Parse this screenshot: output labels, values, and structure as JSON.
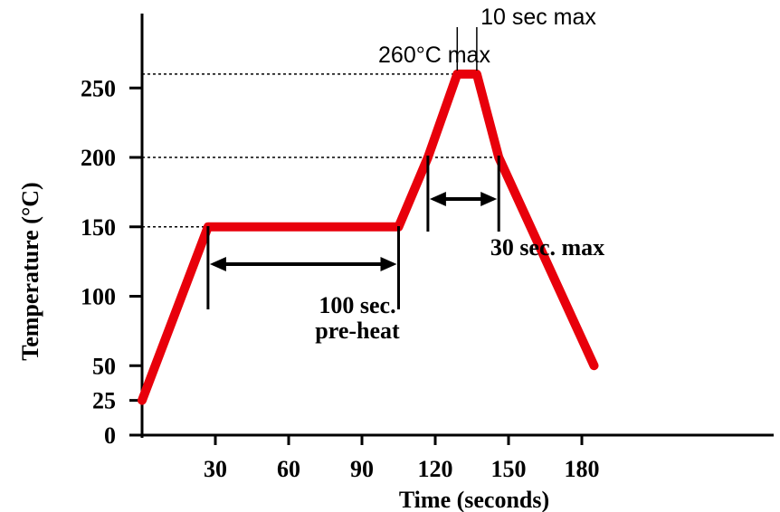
{
  "chart_data": {
    "type": "line",
    "xlabel": "Time (seconds)",
    "ylabel": "Temperature (°C)",
    "xlim": [
      0,
      210
    ],
    "ylim": [
      0,
      270
    ],
    "x_ticks": [
      30,
      60,
      90,
      120,
      150,
      180
    ],
    "y_ticks": [
      0,
      25,
      50,
      100,
      150,
      200,
      250
    ],
    "colors": {
      "profile": "#e8000b",
      "axis": "#000000",
      "annotation": "#000000"
    },
    "series": [
      {
        "x": [
          0,
          27,
          105,
          117,
          129,
          137,
          146,
          185
        ],
        "y": [
          25,
          150,
          150,
          200,
          260,
          260,
          200,
          50
        ]
      }
    ],
    "reference_lines": [
      {
        "y": 260,
        "x_end": 129
      },
      {
        "y": 200,
        "x_end": 146
      },
      {
        "y": 150,
        "x_end": 27
      }
    ],
    "annotations": [
      {
        "id": "preheat",
        "x_start": 27,
        "x_end": 105,
        "lines": [
          "100 sec.",
          "pre-heat"
        ]
      },
      {
        "id": "reflow",
        "x_start": 117,
        "x_end": 146,
        "text": "30 sec. max"
      },
      {
        "id": "peak_time",
        "x_start": 129,
        "x_end": 137,
        "text": "10 sec max"
      },
      {
        "id": "peak_temp",
        "text": "260°C max"
      }
    ]
  }
}
